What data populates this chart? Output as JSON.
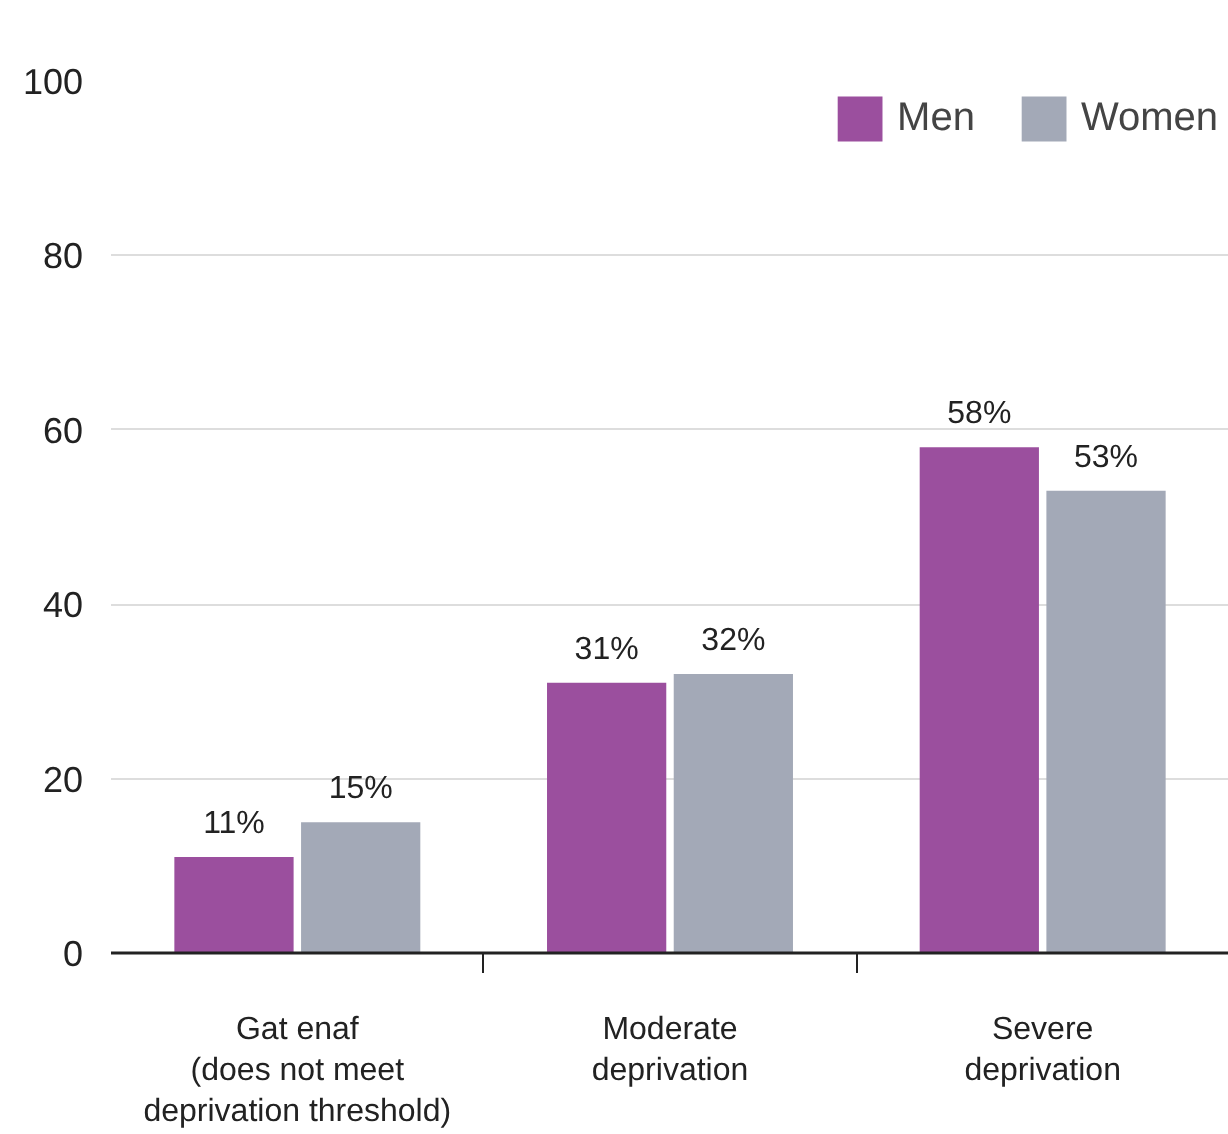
{
  "chart_data": {
    "type": "bar",
    "categories": [
      "Gat enaf\n(does not meet\ndeprivation threshold)",
      "Moderate\ndeprivation",
      "Severe\ndeprivation"
    ],
    "series": [
      {
        "name": "Men",
        "color": "#9b4f9e",
        "values": [
          11,
          31,
          58
        ],
        "value_labels": [
          "11%",
          "31%",
          "58%"
        ]
      },
      {
        "name": "Women",
        "color": "#a3a9b7",
        "values": [
          15,
          32,
          53
        ],
        "value_labels": [
          "15%",
          "32%",
          "53%"
        ]
      }
    ],
    "ylim": [
      0,
      100
    ],
    "yticks": [
      0,
      20,
      40,
      60,
      80,
      100
    ],
    "grid": "y",
    "legend": "top right"
  }
}
